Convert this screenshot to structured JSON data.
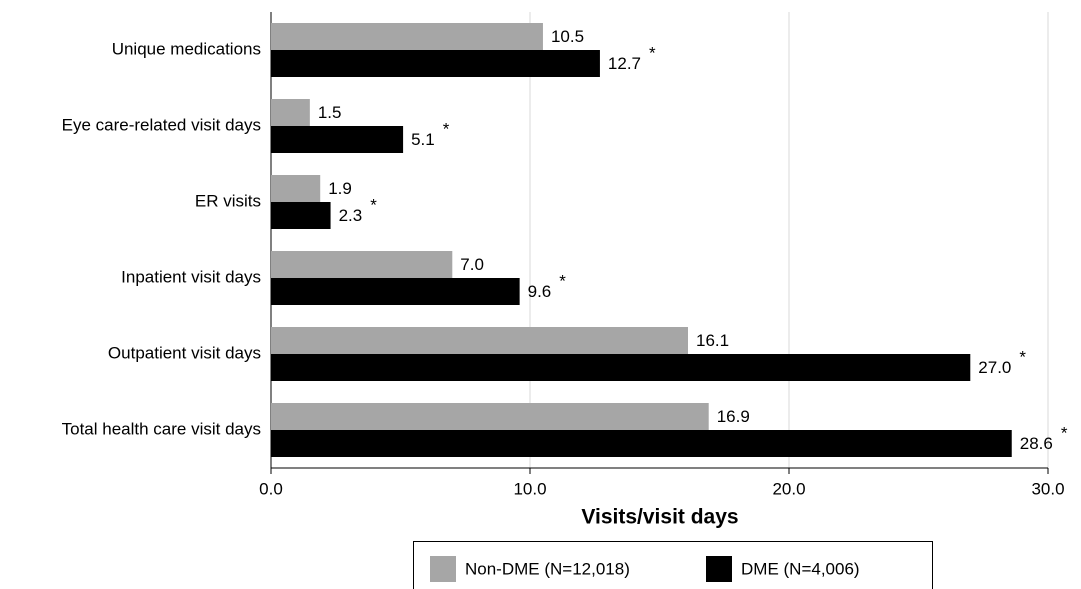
{
  "chart_data": {
    "type": "hbar",
    "categories": [
      "Unique medications",
      "Eye care-related visit days",
      "ER visits",
      "Inpatient visit days",
      "Outpatient visit days",
      "Total health care visit days"
    ],
    "series": [
      {
        "name": "Non-DME (N=12,018)",
        "color": "#a6a6a6",
        "values": [
          10.5,
          1.5,
          1.9,
          7.0,
          16.1,
          16.9
        ],
        "value_labels": [
          "10.5",
          "1.5",
          "1.9",
          "7.0",
          "16.1",
          "16.9"
        ]
      },
      {
        "name": "DME (N=4,006)",
        "color": "#000000",
        "values": [
          12.7,
          5.1,
          2.3,
          9.6,
          27.0,
          28.6
        ],
        "value_labels": [
          "12.7",
          "5.1",
          "2.3",
          "9.6",
          "27.0",
          "28.6"
        ],
        "markers": [
          "*",
          "*",
          "*",
          "*",
          "*",
          "*"
        ]
      }
    ],
    "xlabel": "Visits/visit days",
    "xlim": [
      0,
      30
    ],
    "xticks": [
      {
        "value": 0,
        "label": "0.0"
      },
      {
        "value": 10,
        "label": "10.0"
      },
      {
        "value": 20,
        "label": "20.0"
      },
      {
        "value": 30,
        "label": "30.0"
      }
    ],
    "grid": true,
    "legend": "bottom"
  }
}
